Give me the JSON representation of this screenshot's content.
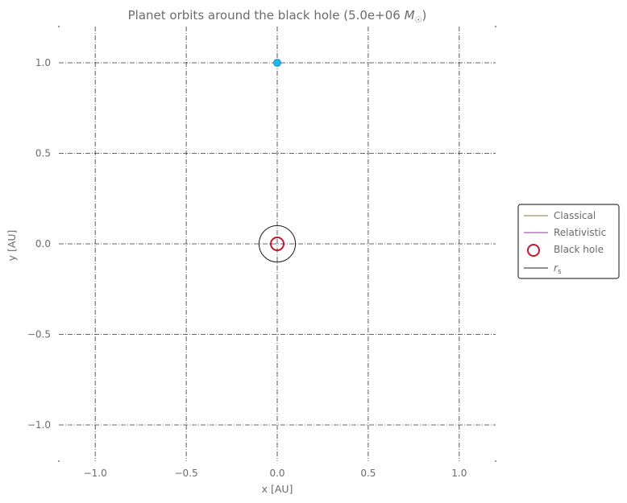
{
  "chart_data": {
    "type": "line",
    "title_main": "Planet orbits around the black hole (5.0e+06 ",
    "title_unit": "M",
    "title_unit_sub": "☉",
    "title_close": ")",
    "xlabel": "x [AU]",
    "ylabel": "y [AU]",
    "xlim": [
      -1.2,
      1.2
    ],
    "ylim": [
      -1.2,
      1.2
    ],
    "xticks": [
      -1.0,
      -0.5,
      0.0,
      0.5,
      1.0
    ],
    "yticks": [
      -1.0,
      -0.5,
      0.0,
      0.5,
      1.0
    ],
    "xtick_labels": [
      "−1.0",
      "−0.5",
      "0.0",
      "0.5",
      "1.0"
    ],
    "ytick_labels": [
      "−1.0",
      "−0.5",
      "0.0",
      "0.5",
      "1.0"
    ],
    "grid": true,
    "legend_position": "right, outside plot",
    "series": [
      {
        "name": "Classical",
        "style": "line",
        "color": "#8c7a3d",
        "x": [
          0.0
        ],
        "y": [
          1.0
        ]
      },
      {
        "name": "Relativistic",
        "style": "line",
        "color": "#9a2aa8",
        "x": [
          0.0
        ],
        "y": [
          1.0
        ]
      },
      {
        "name": "Black hole",
        "style": "ring-marker",
        "color": "#c0182e",
        "x": [
          0.0
        ],
        "y": [
          0.0
        ]
      },
      {
        "name": "r",
        "name_sub": "s",
        "style": "circle",
        "color": "#2a1f1f",
        "radius": 0.1,
        "center": [
          0.0,
          0.0
        ]
      }
    ],
    "planet": {
      "x": 1e-05,
      "y": 1.0,
      "color": "#1fb4ee"
    }
  }
}
